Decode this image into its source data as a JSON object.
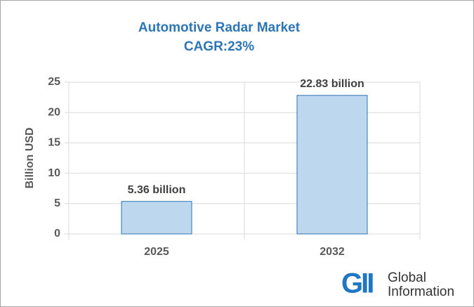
{
  "chart_data": {
    "type": "bar",
    "title": "Automotive Radar Market",
    "subtitle": "CAGR:23%",
    "y_label": "Billion USD",
    "categories": [
      "2025",
      "2032"
    ],
    "values": [
      5.36,
      22.83
    ],
    "value_labels": [
      "5.36 billion",
      "22.83 billion"
    ],
    "color": "#bdd7ee",
    "edge_color": "#2e75b6",
    "ylim": [
      0,
      25
    ],
    "yticks": [
      0,
      5,
      10,
      15,
      20,
      25
    ],
    "grid": true
  },
  "logo": {
    "mark": "GII",
    "lines": [
      "Global",
      "Information"
    ]
  }
}
